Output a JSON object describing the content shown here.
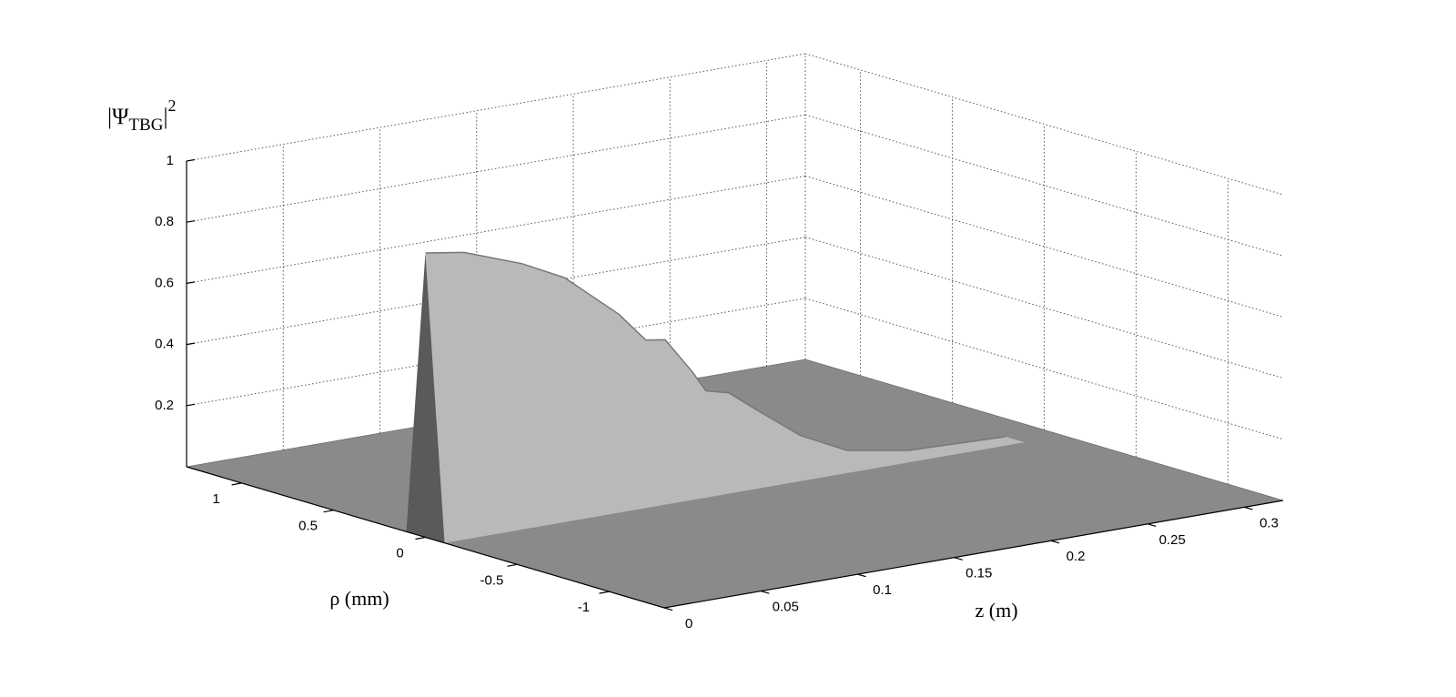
{
  "chart_data": {
    "type": "surface",
    "xlabel": "z (m)",
    "ylabel": "ρ (mm)",
    "zlabel": {
      "text": "|Ψ",
      "subscript": "TBG",
      "suffix": "|",
      "superscript": "2"
    },
    "xlim": [
      0,
      0.32
    ],
    "xticks": [
      0,
      0.05,
      0.1,
      0.15,
      0.2,
      0.25,
      0.3
    ],
    "ylim": [
      -1.3,
      1.3
    ],
    "yticks": [
      -1,
      -0.5,
      0,
      0.5,
      1
    ],
    "zlim": [
      0,
      1
    ],
    "zticks": [
      0.2,
      0.4,
      0.6,
      0.8,
      1
    ],
    "grid": true,
    "color": "#b9b9b9",
    "floor_color": "#8a8a8a",
    "x": [
      0,
      0.02,
      0.05,
      0.072,
      0.1,
      0.114,
      0.124,
      0.138,
      0.145,
      0.157,
      0.171,
      0.194,
      0.218,
      0.25,
      0.3
    ],
    "values": [
      0.93,
      0.91,
      0.84,
      0.77,
      0.62,
      0.52,
      0.51,
      0.39,
      0.32,
      0.3,
      0.23,
      0.12,
      0.045,
      0.01,
      0
    ]
  }
}
